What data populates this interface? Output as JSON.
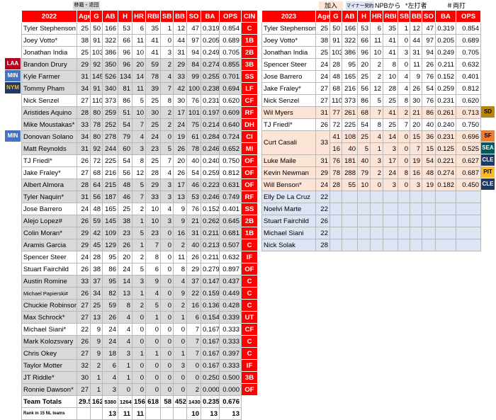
{
  "legend_left": {
    "label1": "移籍・退団"
  },
  "legend_right": {
    "label1": "加入",
    "label2": "マイナー契約",
    "label3": "NPBから",
    "label4": "*左打者",
    "label5": "＃両打"
  },
  "colors": {
    "red": "#ff0000",
    "out": "#d9d9d9",
    "in": "#fce4d6",
    "empty": "#dde4f3",
    "laa": "#ba0021",
    "min": "#4472c4",
    "nym": "#1f3864",
    "sd": "#b8860b",
    "sf": "#ed7d31",
    "sea": "#005c5c",
    "pit": "#fdb827",
    "cle": "#1f3864"
  },
  "left_table": {
    "headers": [
      "2022",
      "Age",
      "G",
      "AB",
      "H",
      "HR",
      "RBI",
      "SB",
      "BB",
      "SO",
      "BA",
      "OPS",
      "CIN"
    ],
    "rows": [
      {
        "name": "Tyler Stephenson",
        "age": "25",
        "g": "50",
        "ab": "166",
        "h": "53",
        "hr": "6",
        "rbi": "35",
        "sb": "1",
        "bb": "12",
        "so": "47",
        "ba": "0.319",
        "ops": "0.854",
        "pos": "C",
        "status": "stay"
      },
      {
        "name": "Joey Votto*",
        "age": "38",
        "g": "91",
        "ab": "322",
        "h": "66",
        "hr": "11",
        "rbi": "41",
        "sb": "0",
        "bb": "44",
        "so": "97",
        "ba": "0.205",
        "ops": "0.689",
        "pos": "1B",
        "status": "stay"
      },
      {
        "name": "Jonathan India",
        "age": "25",
        "g": "103",
        "ab": "386",
        "h": "96",
        "hr": "10",
        "rbi": "41",
        "sb": "3",
        "bb": "31",
        "so": "94",
        "ba": "0.249",
        "ops": "0.705",
        "pos": "2B",
        "status": "stay"
      },
      {
        "name": "Brandon Drury",
        "age": "29",
        "g": "92",
        "ab": "350",
        "h": "96",
        "hr": "20",
        "rbi": "59",
        "sb": "2",
        "bb": "29",
        "so": "84",
        "ba": "0.274",
        "ops": "0.855",
        "pos": "3B",
        "status": "out",
        "team": "LAA"
      },
      {
        "name": "Kyle Farmer",
        "age": "31",
        "g": "145",
        "ab": "526",
        "h": "134",
        "hr": "14",
        "rbi": "78",
        "sb": "4",
        "bb": "33",
        "so": "99",
        "ba": "0.255",
        "ops": "0.701",
        "pos": "SS",
        "status": "out",
        "team": "MIN"
      },
      {
        "name": "Tommy Pham",
        "age": "34",
        "g": "91",
        "ab": "340",
        "h": "81",
        "hr": "11",
        "rbi": "39",
        "sb": "7",
        "bb": "42",
        "so": "100",
        "ba": "0.238",
        "ops": "0.694",
        "pos": "LF",
        "status": "out",
        "team": "NYM"
      },
      {
        "name": "Nick Senzel",
        "age": "27",
        "g": "110",
        "ab": "373",
        "h": "86",
        "hr": "5",
        "rbi": "25",
        "sb": "8",
        "bb": "30",
        "so": "76",
        "ba": "0.231",
        "ops": "0.620",
        "pos": "CF",
        "status": "stay"
      },
      {
        "name": "Aristides Aquino",
        "age": "28",
        "g": "80",
        "ab": "259",
        "h": "51",
        "hr": "10",
        "rbi": "30",
        "sb": "2",
        "bb": "17",
        "so": "101",
        "ba": "0.197",
        "ops": "0.609",
        "pos": "RF",
        "status": "out"
      },
      {
        "name": "Mike Moustakas*",
        "age": "33",
        "g": "78",
        "ab": "252",
        "h": "54",
        "hr": "7",
        "rbi": "25",
        "sb": "2",
        "bb": "24",
        "so": "75",
        "ba": "0.214",
        "ops": "0.640",
        "pos": "DH",
        "status": "out"
      },
      {
        "name": "Donovan Solano",
        "age": "34",
        "g": "80",
        "ab": "278",
        "h": "79",
        "hr": "4",
        "rbi": "24",
        "sb": "0",
        "bb": "19",
        "so": "61",
        "ba": "0.284",
        "ops": "0.724",
        "pos": "CI",
        "status": "out",
        "team": "MIN"
      },
      {
        "name": "Matt Reynolds",
        "age": "31",
        "g": "92",
        "ab": "244",
        "h": "60",
        "hr": "3",
        "rbi": "23",
        "sb": "5",
        "bb": "26",
        "so": "78",
        "ba": "0.246",
        "ops": "0.652",
        "pos": "MI",
        "status": "out"
      },
      {
        "name": "TJ Friedl*",
        "age": "26",
        "g": "72",
        "ab": "225",
        "h": "54",
        "hr": "8",
        "rbi": "25",
        "sb": "7",
        "bb": "20",
        "so": "40",
        "ba": "0.240",
        "ops": "0.750",
        "pos": "OF",
        "status": "stay"
      },
      {
        "name": "Jake Fraley*",
        "age": "27",
        "g": "68",
        "ab": "216",
        "h": "56",
        "hr": "12",
        "rbi": "28",
        "sb": "4",
        "bb": "26",
        "so": "54",
        "ba": "0.259",
        "ops": "0.812",
        "pos": "OF",
        "status": "stay"
      },
      {
        "name": "Albert Almora",
        "age": "28",
        "g": "64",
        "ab": "215",
        "h": "48",
        "hr": "5",
        "rbi": "29",
        "sb": "3",
        "bb": "17",
        "so": "46",
        "ba": "0.223",
        "ops": "0.631",
        "pos": "OF",
        "status": "out"
      },
      {
        "name": "Tyler Naquin*",
        "age": "31",
        "g": "56",
        "ab": "187",
        "h": "46",
        "hr": "7",
        "rbi": "33",
        "sb": "3",
        "bb": "13",
        "so": "53",
        "ba": "0.246",
        "ops": "0.749",
        "pos": "RF",
        "status": "out"
      },
      {
        "name": "Jose Barrero",
        "age": "24",
        "g": "48",
        "ab": "165",
        "h": "25",
        "hr": "2",
        "rbi": "10",
        "sb": "4",
        "bb": "9",
        "so": "76",
        "ba": "0.152",
        "ops": "0.401",
        "pos": "SS",
        "status": "stay"
      },
      {
        "name": "Alejo Lopez#",
        "age": "26",
        "g": "59",
        "ab": "145",
        "h": "38",
        "hr": "1",
        "rbi": "10",
        "sb": "3",
        "bb": "9",
        "so": "21",
        "ba": "0.262",
        "ops": "0.645",
        "pos": "2B",
        "status": "out"
      },
      {
        "name": "Colin Moran*",
        "age": "29",
        "g": "42",
        "ab": "109",
        "h": "23",
        "hr": "5",
        "rbi": "23",
        "sb": "0",
        "bb": "16",
        "so": "31",
        "ba": "0.211",
        "ops": "0.681",
        "pos": "1B",
        "status": "out"
      },
      {
        "name": "Aramis Garcia",
        "age": "29",
        "g": "45",
        "ab": "129",
        "h": "26",
        "hr": "1",
        "rbi": "7",
        "sb": "0",
        "bb": "2",
        "so": "40",
        "ba": "0.213",
        "ops": "0.507",
        "pos": "C",
        "status": "out"
      },
      {
        "name": "Spencer Steer",
        "age": "24",
        "g": "28",
        "ab": "95",
        "h": "20",
        "hr": "2",
        "rbi": "8",
        "sb": "0",
        "bb": "11",
        "so": "26",
        "ba": "0.211",
        "ops": "0.632",
        "pos": "IF",
        "status": "stay"
      },
      {
        "name": "Stuart Fairchild",
        "age": "26",
        "g": "38",
        "ab": "86",
        "h": "24",
        "hr": "5",
        "rbi": "6",
        "sb": "0",
        "bb": "8",
        "so": "29",
        "ba": "0.279",
        "ops": "0.897",
        "pos": "OF",
        "status": "stay"
      },
      {
        "name": "Austin Romine",
        "age": "33",
        "g": "37",
        "ab": "95",
        "h": "14",
        "hr": "3",
        "rbi": "9",
        "sb": "0",
        "bb": "4",
        "so": "37",
        "ba": "0.147",
        "ops": "0.437",
        "pos": "C",
        "status": "out"
      },
      {
        "name": "Michael Papierski#",
        "age": "26",
        "g": "34",
        "ab": "82",
        "h": "13",
        "hr": "1",
        "rbi": "4",
        "sb": "0",
        "bb": "9",
        "so": "22",
        "ba": "0.159",
        "ops": "0.449",
        "pos": "C",
        "status": "out",
        "small": true
      },
      {
        "name": "Chuckie Robinson",
        "age": "27",
        "g": "25",
        "ab": "59",
        "h": "8",
        "hr": "2",
        "rbi": "5",
        "sb": "0",
        "bb": "2",
        "so": "16",
        "ba": "0.136",
        "ops": "0.428",
        "pos": "C",
        "status": "out"
      },
      {
        "name": "Max Schrock*",
        "age": "27",
        "g": "13",
        "ab": "26",
        "h": "4",
        "hr": "0",
        "rbi": "1",
        "sb": "0",
        "bb": "1",
        "so": "6",
        "ba": "0.154",
        "ops": "0.339",
        "pos": "UT",
        "status": "out"
      },
      {
        "name": "Michael Siani*",
        "age": "22",
        "g": "9",
        "ab": "24",
        "h": "4",
        "hr": "0",
        "rbi": "0",
        "sb": "0",
        "bb": "0",
        "so": "7",
        "ba": "0.167",
        "ops": "0.333",
        "pos": "CF",
        "status": "stay"
      },
      {
        "name": "Mark Kolozsvary",
        "age": "26",
        "g": "9",
        "ab": "24",
        "h": "4",
        "hr": "0",
        "rbi": "0",
        "sb": "0",
        "bb": "0",
        "so": "7",
        "ba": "0.167",
        "ops": "0.333",
        "pos": "C",
        "status": "out"
      },
      {
        "name": "Chris Okey",
        "age": "27",
        "g": "9",
        "ab": "18",
        "h": "3",
        "hr": "1",
        "rbi": "1",
        "sb": "0",
        "bb": "1",
        "so": "7",
        "ba": "0.167",
        "ops": "0.397",
        "pos": "C",
        "status": "out"
      },
      {
        "name": "Taylor Motter",
        "age": "32",
        "g": "2",
        "ab": "6",
        "h": "1",
        "hr": "0",
        "rbi": "0",
        "sb": "0",
        "bb": "3",
        "so": "0",
        "ba": "0.167",
        "ops": "0.333",
        "pos": "IF",
        "status": "out"
      },
      {
        "name": "JT Riddle*",
        "age": "30",
        "g": "1",
        "ab": "4",
        "h": "1",
        "hr": "0",
        "rbi": "0",
        "sb": "0",
        "bb": "0",
        "so": "0",
        "ba": "0.250",
        "ops": "0.500",
        "pos": "3B",
        "status": "out"
      },
      {
        "name": "Ronnie Dawson*",
        "age": "27",
        "g": "1",
        "ab": "3",
        "h": "0",
        "hr": "0",
        "rbi": "0",
        "sb": "0",
        "bb": "0",
        "so": "2",
        "ba": "0.000",
        "ops": "0.000",
        "pos": "OF",
        "status": "out"
      }
    ],
    "totals": {
      "label": "Team Totals",
      "age": "29.5",
      "g": "162",
      "ab": "5380",
      "h": "1264",
      "hr": "156",
      "rbi": "618",
      "sb": "58",
      "bb": "452",
      "so": "1430",
      "ba": "0.235",
      "ops": "0.676"
    },
    "rank": {
      "label": "Rank in 15 NL teams",
      "ab": "13",
      "h": "11",
      "hr": "11",
      "so": "10",
      "ba": "13",
      "ops": "13"
    }
  },
  "right_table": {
    "headers": [
      "2023",
      "Age",
      "G",
      "AB",
      "H",
      "HR",
      "RBI",
      "SB",
      "BB",
      "SO",
      "BA",
      "OPS"
    ],
    "rows": [
      {
        "name": "Tyler Stephenson",
        "age": "25",
        "g": "50",
        "ab": "166",
        "h": "53",
        "hr": "6",
        "rbi": "35",
        "sb": "1",
        "bb": "12",
        "so": "47",
        "ba": "0.319",
        "ops": "0.854",
        "status": "stay"
      },
      {
        "name": "Joey Votto*",
        "age": "38",
        "g": "91",
        "ab": "322",
        "h": "66",
        "hr": "11",
        "rbi": "41",
        "sb": "0",
        "bb": "44",
        "so": "97",
        "ba": "0.205",
        "ops": "0.689",
        "status": "stay"
      },
      {
        "name": "Jonathan India",
        "age": "25",
        "g": "103",
        "ab": "386",
        "h": "96",
        "hr": "10",
        "rbi": "41",
        "sb": "3",
        "bb": "31",
        "so": "94",
        "ba": "0.249",
        "ops": "0.705",
        "status": "stay"
      },
      {
        "name": "Spencer Steer",
        "age": "24",
        "g": "28",
        "ab": "95",
        "h": "20",
        "hr": "2",
        "rbi": "8",
        "sb": "0",
        "bb": "11",
        "so": "26",
        "ba": "0.211",
        "ops": "0.632",
        "status": "stay"
      },
      {
        "name": "Jose Barrero",
        "age": "24",
        "g": "48",
        "ab": "165",
        "h": "25",
        "hr": "2",
        "rbi": "10",
        "sb": "4",
        "bb": "9",
        "so": "76",
        "ba": "0.152",
        "ops": "0.401",
        "status": "stay"
      },
      {
        "name": "Jake Fraley*",
        "age": "27",
        "g": "68",
        "ab": "216",
        "h": "56",
        "hr": "12",
        "rbi": "28",
        "sb": "4",
        "bb": "26",
        "so": "54",
        "ba": "0.259",
        "ops": "0.812",
        "status": "stay"
      },
      {
        "name": "Nick Senzel",
        "age": "27",
        "g": "110",
        "ab": "373",
        "h": "86",
        "hr": "5",
        "rbi": "25",
        "sb": "8",
        "bb": "30",
        "so": "76",
        "ba": "0.231",
        "ops": "0.620",
        "status": "stay"
      },
      {
        "name": "Wil Myers",
        "age": "31",
        "g": "77",
        "ab": "261",
        "h": "68",
        "hr": "7",
        "rbi": "41",
        "sb": "2",
        "bb": "21",
        "so": "86",
        "ba": "0.261",
        "ops": "0.713",
        "status": "in",
        "team": "SD"
      },
      {
        "name": "TJ Friedl*",
        "age": "26",
        "g": "72",
        "ab": "225",
        "h": "54",
        "hr": "8",
        "rbi": "25",
        "sb": "7",
        "bb": "20",
        "so": "40",
        "ba": "0.240",
        "ops": "0.750",
        "status": "stay"
      },
      {
        "name": "Curt Casali",
        "age": "33",
        "g": "41",
        "ab": "108",
        "h": "25",
        "hr": "4",
        "rbi": "14",
        "sb": "0",
        "bb": "15",
        "so": "36",
        "ba": "0.231",
        "ops": "0.696",
        "status": "in",
        "team": "SF",
        "double": true,
        "g2": "16",
        "ab2": "40",
        "h2": "5",
        "hr2": "1",
        "rbi2": "3",
        "sb2": "0",
        "bb2": "7",
        "so2": "15",
        "ba2": "0.125",
        "ops2": "0.525",
        "team2": "SEA"
      },
      {
        "name": "Luke Maile",
        "age": "31",
        "g": "76",
        "ab": "181",
        "h": "40",
        "hr": "3",
        "rbi": "17",
        "sb": "0",
        "bb": "19",
        "so": "54",
        "ba": "0.221",
        "ops": "0.627",
        "status": "in",
        "team": "CLE"
      },
      {
        "name": "Kevin Newman",
        "age": "29",
        "g": "78",
        "ab": "288",
        "h": "79",
        "hr": "2",
        "rbi": "24",
        "sb": "8",
        "bb": "16",
        "so": "48",
        "ba": "0.274",
        "ops": "0.687",
        "status": "in",
        "team": "PIT"
      },
      {
        "name": "Will Benson*",
        "age": "24",
        "g": "28",
        "ab": "55",
        "h": "10",
        "hr": "0",
        "rbi": "3",
        "sb": "0",
        "bb": "3",
        "so": "19",
        "ba": "0.182",
        "ops": "0.450",
        "status": "in",
        "team": "CLE"
      },
      {
        "name": "Elly De La Cruz",
        "age": "22",
        "status": "empty"
      },
      {
        "name": "Noelvi Marte",
        "age": "22",
        "status": "empty"
      },
      {
        "name": "Stuart Fairchild",
        "age": "26",
        "status": "empty"
      },
      {
        "name": "Michael Siani",
        "age": "22",
        "status": "empty"
      },
      {
        "name": "Nick Solak",
        "age": "28",
        "status": "empty"
      }
    ]
  }
}
